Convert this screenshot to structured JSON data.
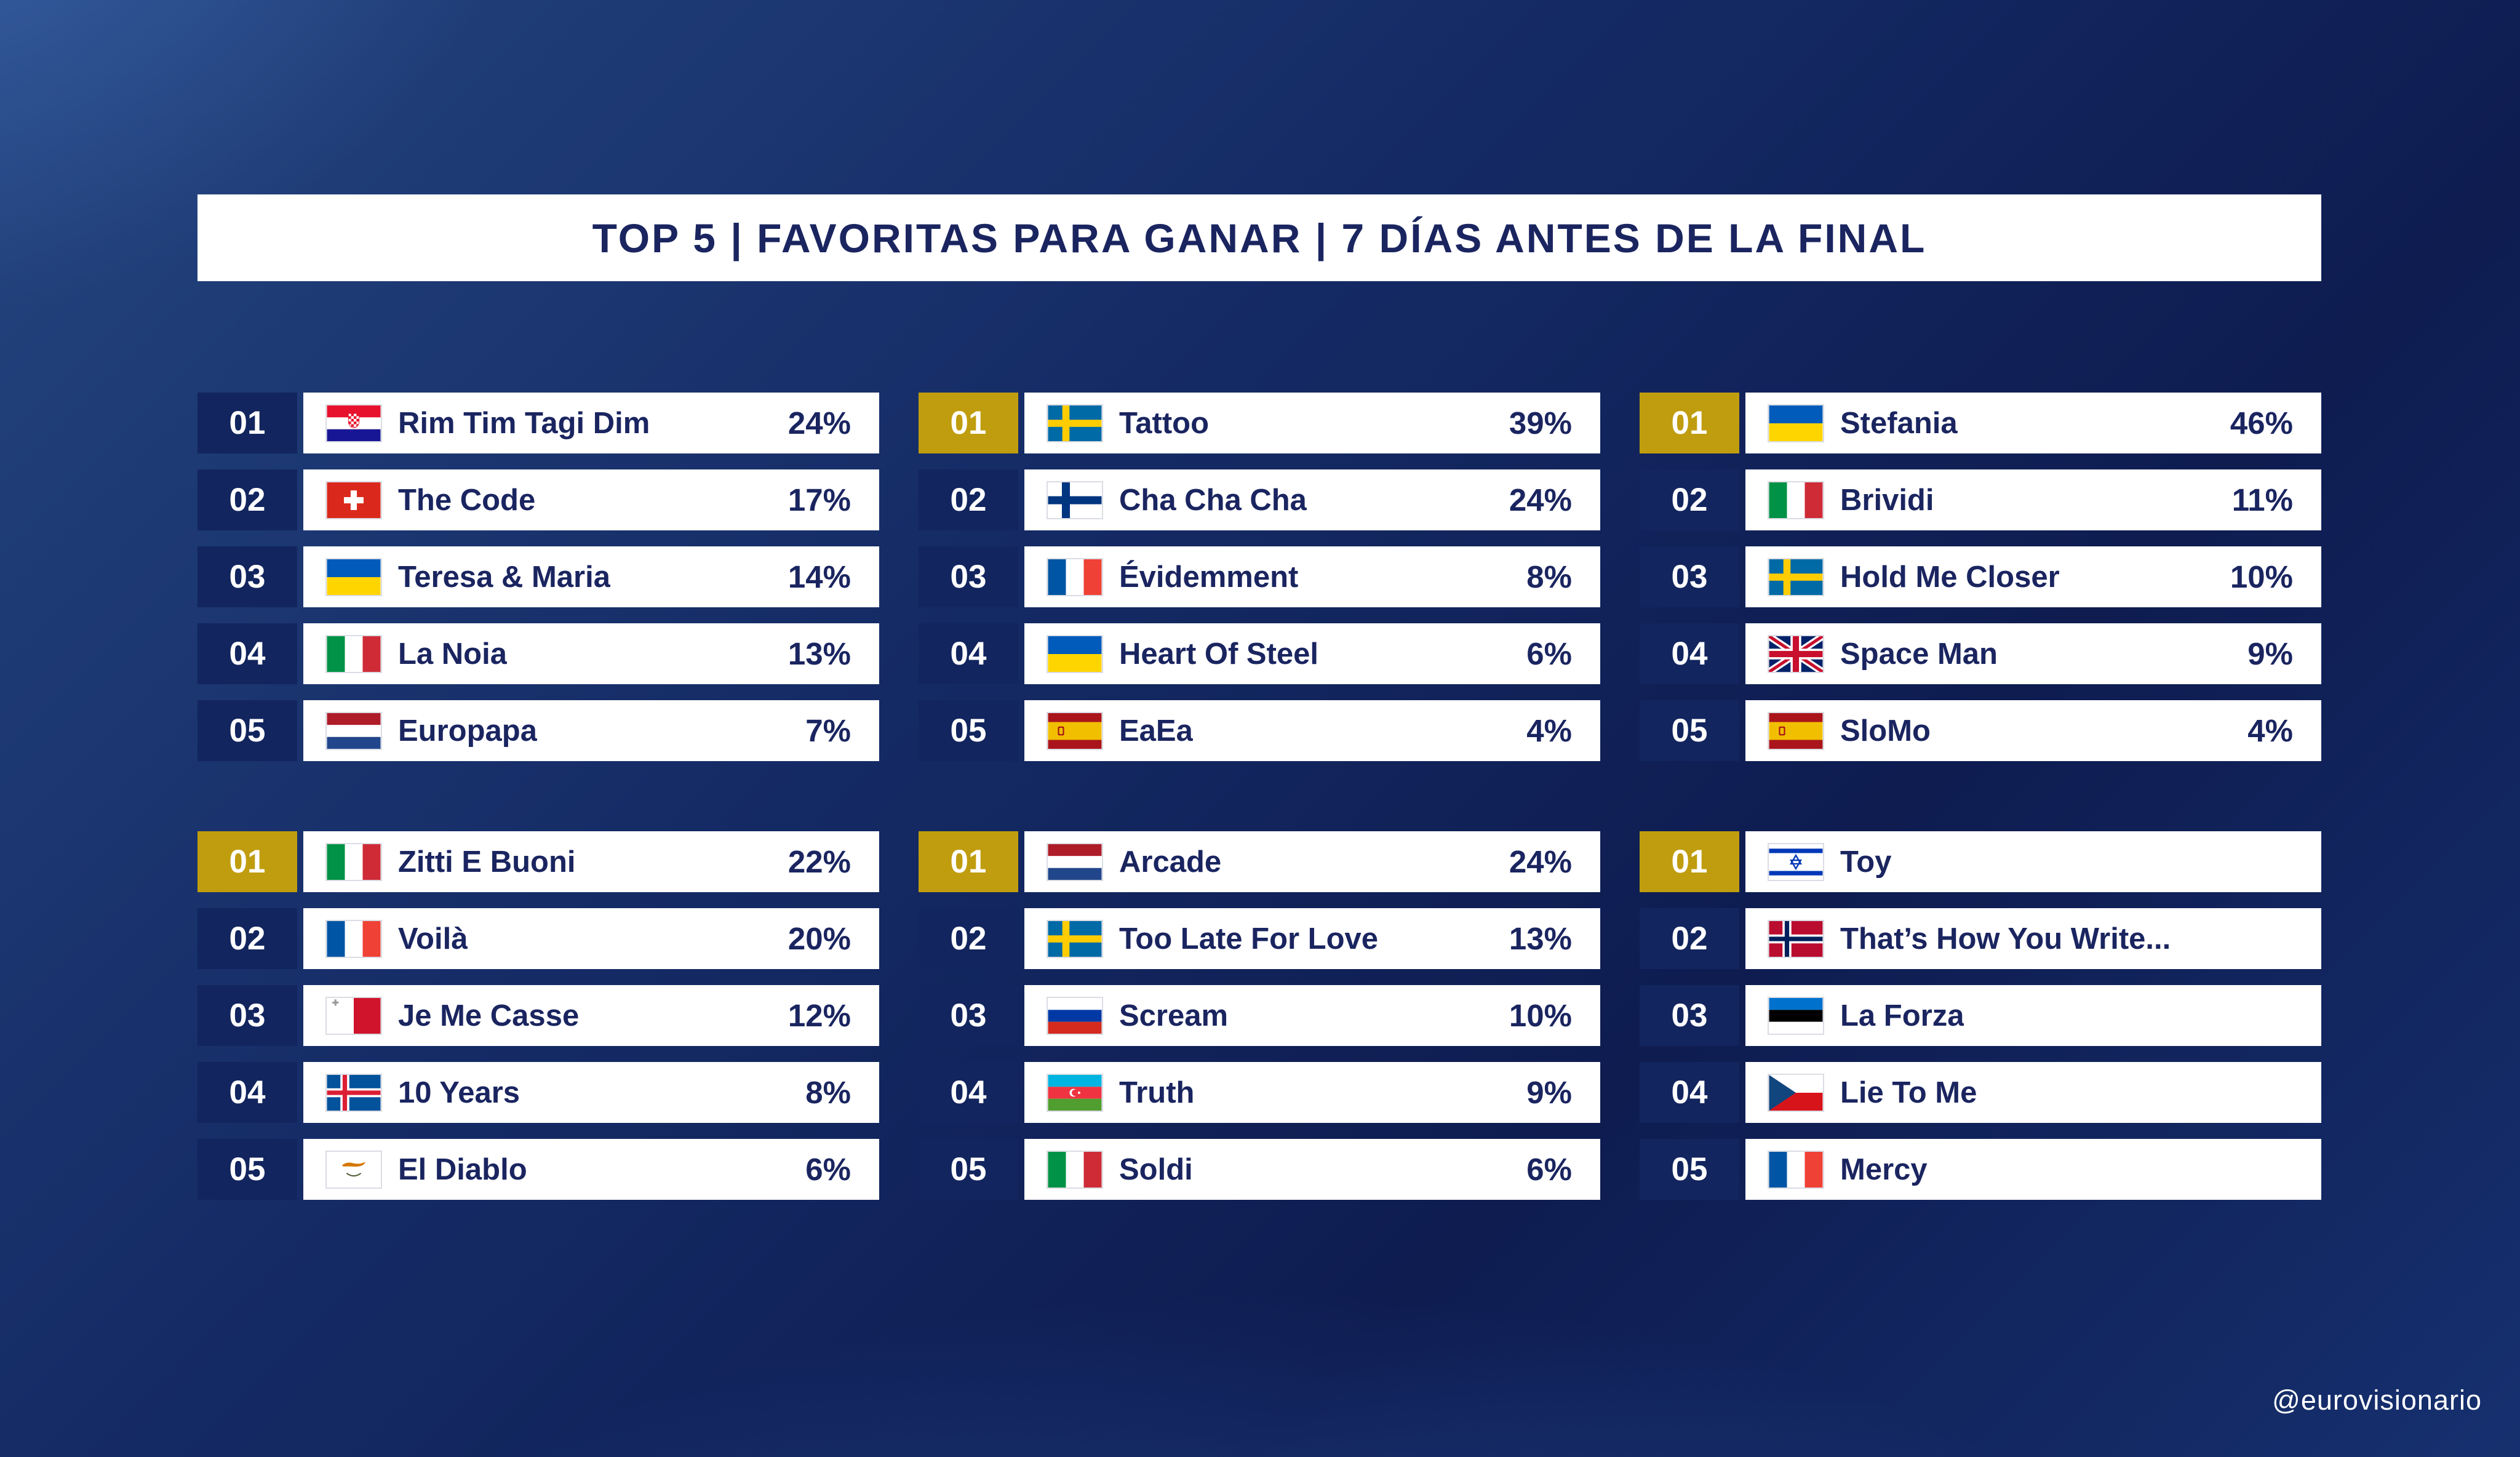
{
  "title": "TOP 5  |  FAVORITAS PARA GANAR  |  7 DÍAS ANTES DE LA FINAL",
  "credit": "@eurovisionario",
  "colors": {
    "navy": "#12255E",
    "gold": "#C09D0E",
    "ink": "#1A2560",
    "card": "#FFFFFF"
  },
  "chart_data": {
    "type": "table",
    "title": "TOP 5 | FAVORITAS PARA GANAR | 7 DÍAS ANTES DE LA FINAL",
    "columns": [
      "rank",
      "country",
      "song",
      "percent"
    ],
    "panels": [
      {
        "rows": [
          {
            "rank": "01",
            "country": "croatia",
            "song": "Rim Tim Tagi Dim",
            "pct": "24%",
            "gold": false
          },
          {
            "rank": "02",
            "country": "switzerland",
            "song": "The Code",
            "pct": "17%",
            "gold": false
          },
          {
            "rank": "03",
            "country": "ukraine",
            "song": "Teresa & Maria",
            "pct": "14%",
            "gold": false
          },
          {
            "rank": "04",
            "country": "italy",
            "song": "La Noia",
            "pct": "13%",
            "gold": false
          },
          {
            "rank": "05",
            "country": "netherlands",
            "song": "Europapa",
            "pct": "7%",
            "gold": false
          }
        ]
      },
      {
        "rows": [
          {
            "rank": "01",
            "country": "sweden",
            "song": "Tattoo",
            "pct": "39%",
            "gold": true
          },
          {
            "rank": "02",
            "country": "finland",
            "song": "Cha Cha Cha",
            "pct": "24%",
            "gold": false
          },
          {
            "rank": "03",
            "country": "france",
            "song": "Évidemment",
            "pct": "8%",
            "gold": false
          },
          {
            "rank": "04",
            "country": "ukraine",
            "song": "Heart Of Steel",
            "pct": "6%",
            "gold": false
          },
          {
            "rank": "05",
            "country": "spain",
            "song": "EaEa",
            "pct": "4%",
            "gold": false
          }
        ]
      },
      {
        "rows": [
          {
            "rank": "01",
            "country": "ukraine",
            "song": "Stefania",
            "pct": "46%",
            "gold": true
          },
          {
            "rank": "02",
            "country": "italy",
            "song": "Brividi",
            "pct": "11%",
            "gold": false
          },
          {
            "rank": "03",
            "country": "sweden",
            "song": "Hold Me Closer",
            "pct": "10%",
            "gold": false
          },
          {
            "rank": "04",
            "country": "united-kingdom",
            "song": "Space Man",
            "pct": "9%",
            "gold": false
          },
          {
            "rank": "05",
            "country": "spain",
            "song": "SloMo",
            "pct": "4%",
            "gold": false
          }
        ]
      },
      {
        "rows": [
          {
            "rank": "01",
            "country": "italy",
            "song": "Zitti E Buoni",
            "pct": "22%",
            "gold": true
          },
          {
            "rank": "02",
            "country": "france",
            "song": "Voilà",
            "pct": "20%",
            "gold": false
          },
          {
            "rank": "03",
            "country": "malta",
            "song": "Je Me Casse",
            "pct": "12%",
            "gold": false
          },
          {
            "rank": "04",
            "country": "iceland",
            "song": "10 Years",
            "pct": "8%",
            "gold": false
          },
          {
            "rank": "05",
            "country": "cyprus",
            "song": "El Diablo",
            "pct": "6%",
            "gold": false
          }
        ]
      },
      {
        "rows": [
          {
            "rank": "01",
            "country": "netherlands",
            "song": "Arcade",
            "pct": "24%",
            "gold": true
          },
          {
            "rank": "02",
            "country": "sweden",
            "song": "Too Late For Love",
            "pct": "13%",
            "gold": false
          },
          {
            "rank": "03",
            "country": "russia",
            "song": "Scream",
            "pct": "10%",
            "gold": false
          },
          {
            "rank": "04",
            "country": "azerbaijan",
            "song": "Truth",
            "pct": "9%",
            "gold": false
          },
          {
            "rank": "05",
            "country": "italy",
            "song": "Soldi",
            "pct": "6%",
            "gold": false
          }
        ]
      },
      {
        "rows": [
          {
            "rank": "01",
            "country": "israel",
            "song": "Toy",
            "pct": "",
            "gold": true
          },
          {
            "rank": "02",
            "country": "norway",
            "song": "That’s How You Write...",
            "pct": "",
            "gold": false
          },
          {
            "rank": "03",
            "country": "estonia",
            "song": "La Forza",
            "pct": "",
            "gold": false
          },
          {
            "rank": "04",
            "country": "czechia",
            "song": "Lie To Me",
            "pct": "",
            "gold": false
          },
          {
            "rank": "05",
            "country": "france",
            "song": "Mercy",
            "pct": "",
            "gold": false
          }
        ]
      }
    ]
  }
}
